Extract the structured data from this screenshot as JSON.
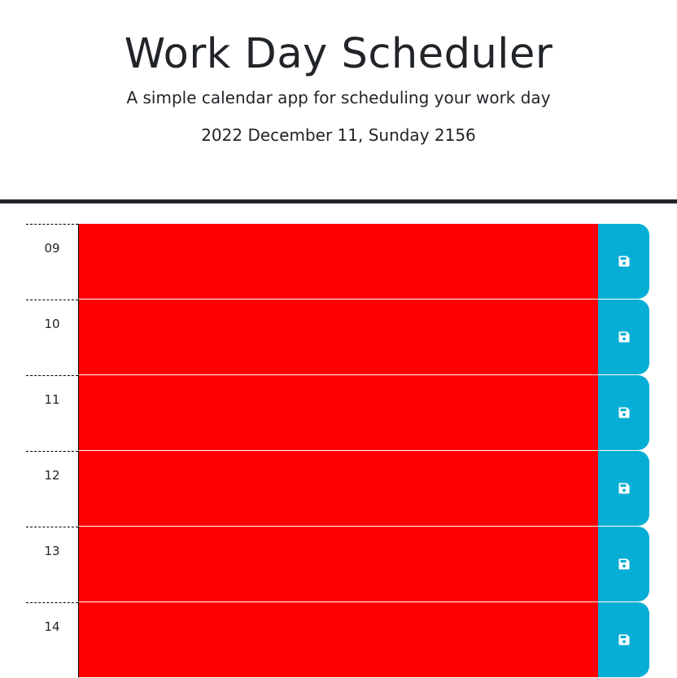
{
  "header": {
    "title": "Work Day Scheduler",
    "subtitle": "A simple calendar app for scheduling your work day",
    "current_day": "2022 December 11, Sunday 2156"
  },
  "time_blocks": [
    {
      "hour": "09",
      "text": "",
      "status": "past",
      "save_icon": "floppy-disk-icon"
    },
    {
      "hour": "10",
      "text": "",
      "status": "past",
      "save_icon": "floppy-disk-icon"
    },
    {
      "hour": "11",
      "text": "",
      "status": "past",
      "save_icon": "floppy-disk-icon"
    },
    {
      "hour": "12",
      "text": "",
      "status": "past",
      "save_icon": "floppy-disk-icon"
    },
    {
      "hour": "13",
      "text": "",
      "status": "past",
      "save_icon": "floppy-disk-icon"
    },
    {
      "hour": "14",
      "text": "",
      "status": "past",
      "save_icon": "floppy-disk-icon"
    }
  ],
  "colors": {
    "past": "#ff0000",
    "save_button": "#06aed5",
    "header_rule": "#212529"
  }
}
